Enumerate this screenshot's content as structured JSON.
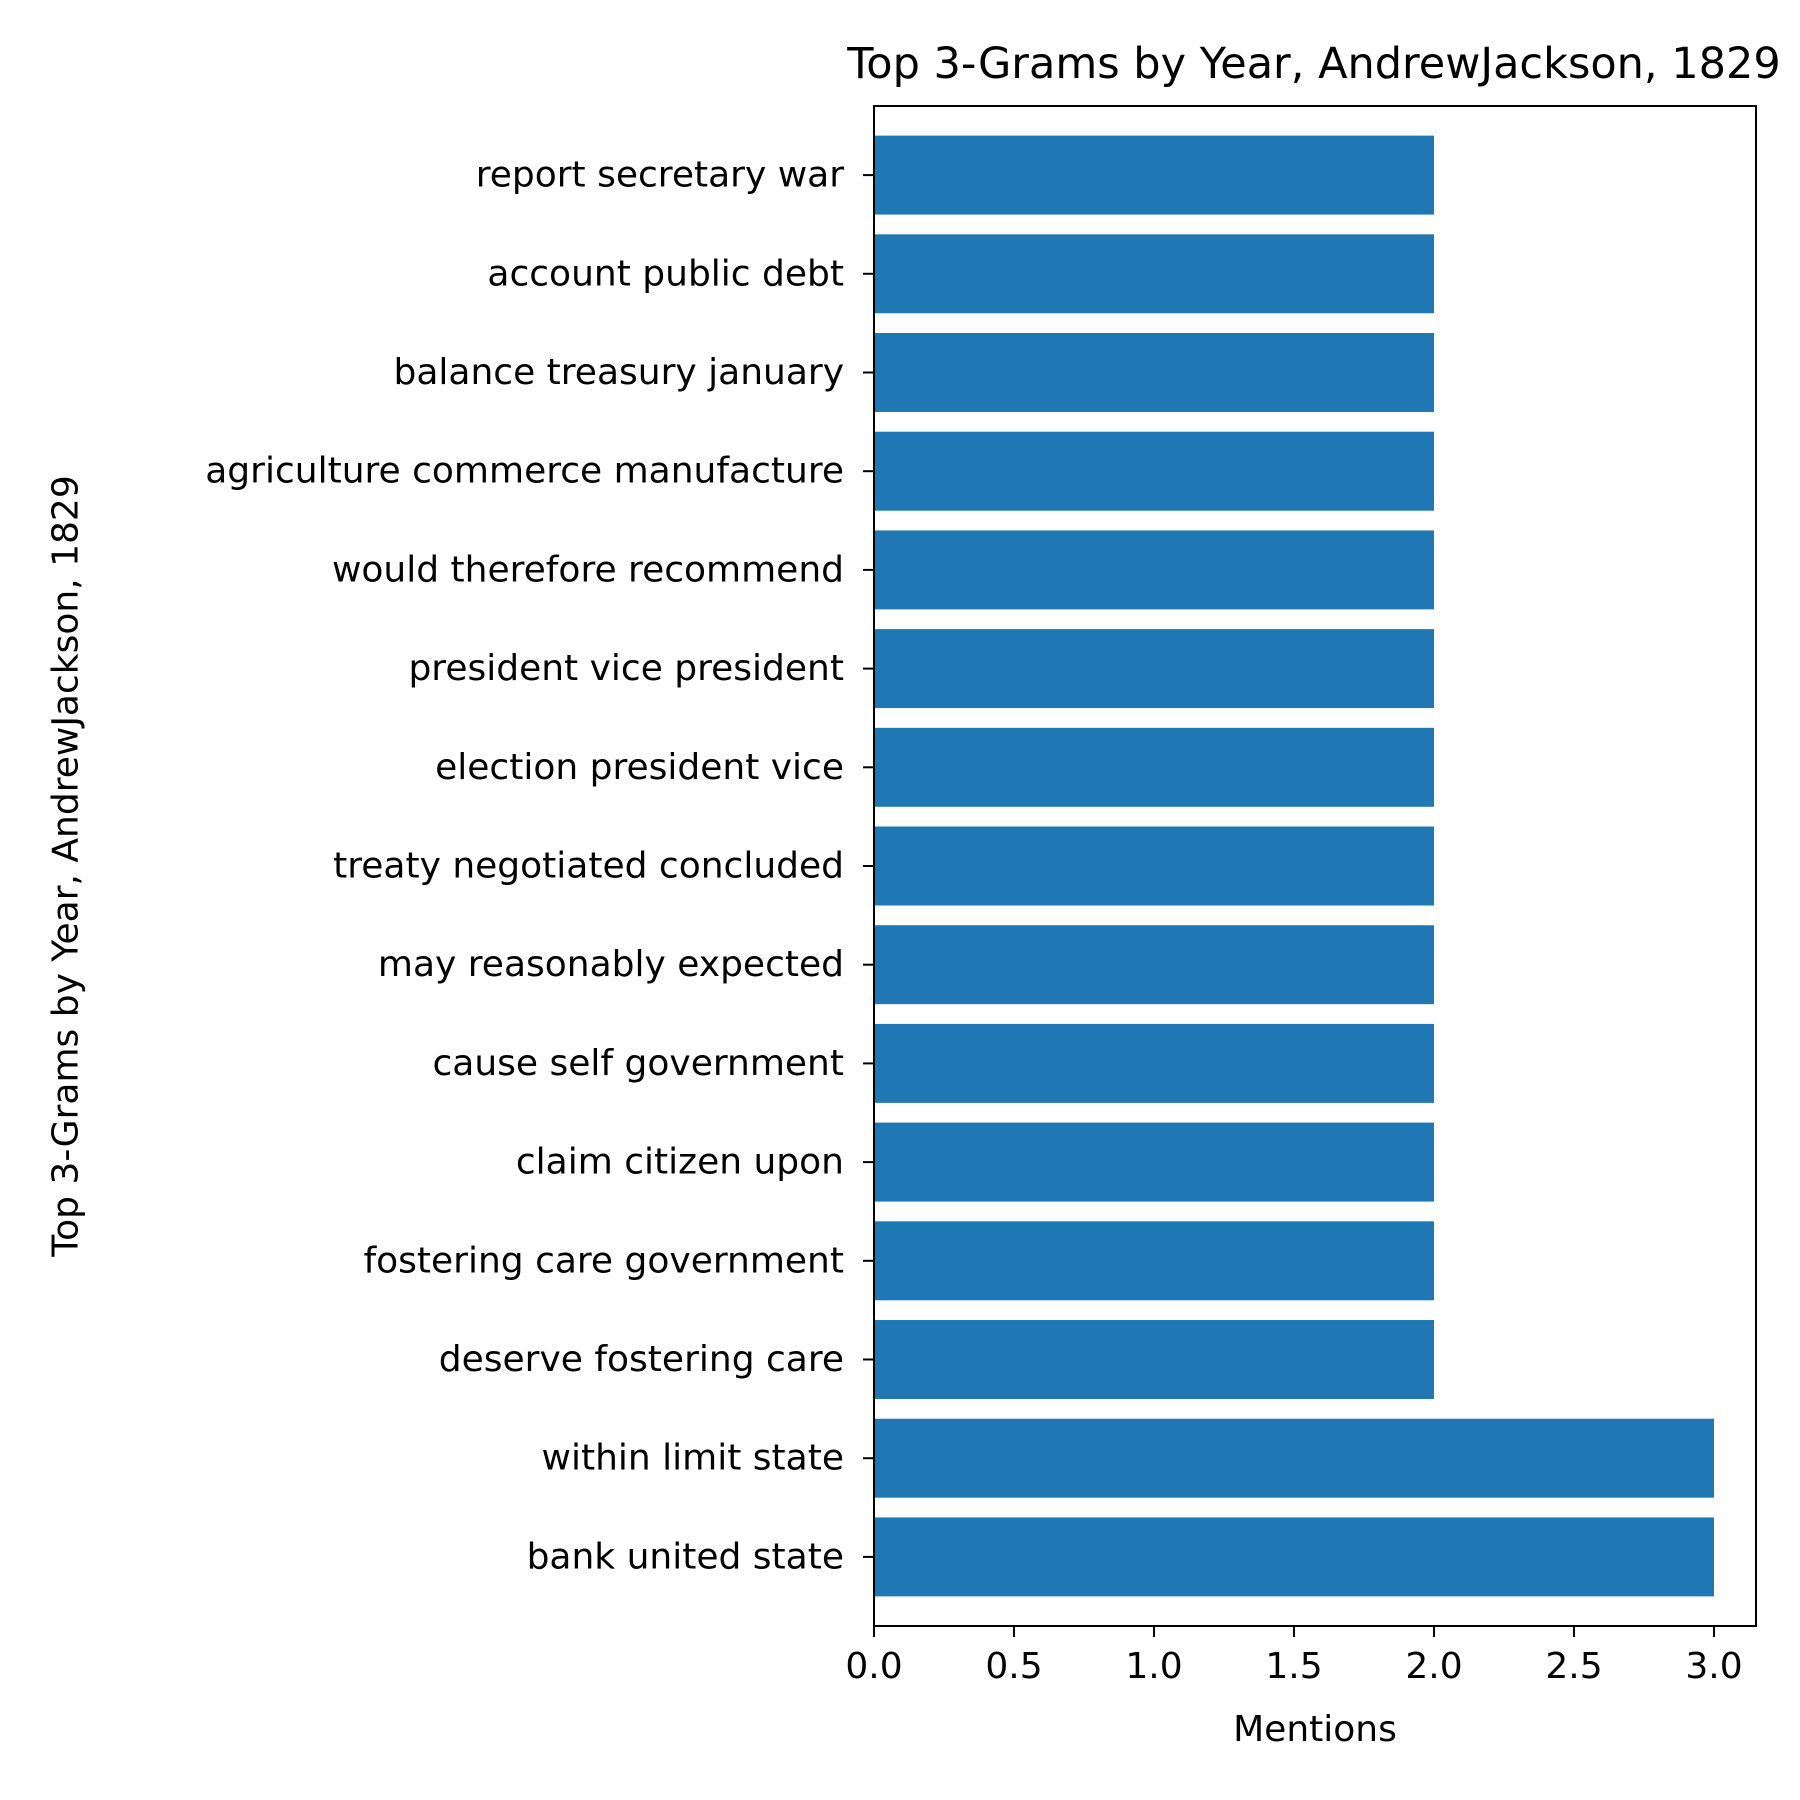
{
  "chart_data": {
    "type": "bar",
    "orientation": "horizontal",
    "title": "Top 3-Grams by Year, AndrewJackson, 1829",
    "xlabel": "Mentions",
    "ylabel": "Top 3-Grams by Year, AndrewJackson, 1829",
    "categories": [
      "bank united state",
      "within limit state",
      "deserve fostering care",
      "fostering care government",
      "claim citizen upon",
      "cause self government",
      "may reasonably expected",
      "treaty negotiated concluded",
      "election president vice",
      "president vice president",
      "would therefore recommend",
      "agriculture commerce manufacture",
      "balance treasury january",
      "account public debt",
      "report secretary war"
    ],
    "values": [
      3,
      3,
      2,
      2,
      2,
      2,
      2,
      2,
      2,
      2,
      2,
      2,
      2,
      2,
      2
    ],
    "xlim": [
      0,
      3.15
    ],
    "xticks": [
      "0.0",
      "0.5",
      "1.0",
      "1.5",
      "2.0",
      "2.5",
      "3.0"
    ],
    "grid": false,
    "bar_color": "#1f77b4"
  }
}
